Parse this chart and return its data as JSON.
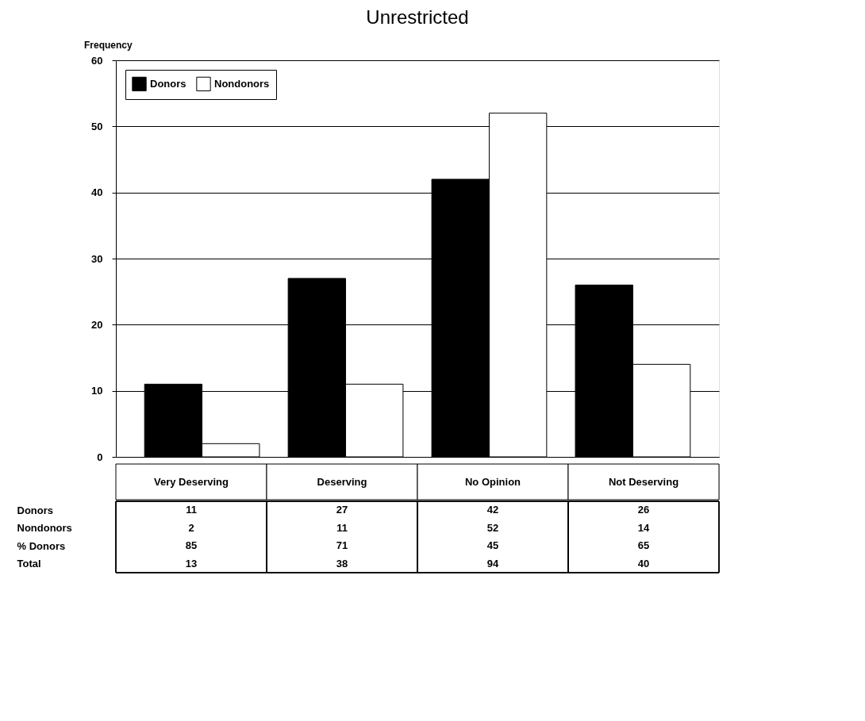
{
  "chart_data": {
    "type": "bar",
    "title": "Unrestricted",
    "ylabel": "Frequency",
    "categories": [
      "Very Deserving",
      "Deserving",
      "No Opinion",
      "Not Deserving"
    ],
    "series": [
      {
        "name": "Donors",
        "color": "#000000",
        "values": [
          11,
          27,
          42,
          26
        ]
      },
      {
        "name": "Nondonors",
        "color": "#ffffff",
        "values": [
          2,
          11,
          52,
          14
        ]
      }
    ],
    "ylim": [
      0,
      60
    ],
    "yticks": [
      0,
      10,
      20,
      30,
      40,
      50,
      60
    ],
    "grid": "y",
    "legend": "top left",
    "data_labels": true,
    "annotations": [
      "% Donors",
      "85",
      "71",
      "45",
      "65",
      "Total",
      "13",
      "38",
      "94",
      "40"
    ]
  }
}
